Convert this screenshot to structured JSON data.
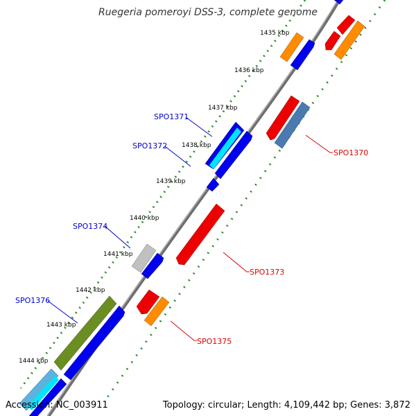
{
  "title": "Ruegeria pomeroyi DSS-3, complete genome",
  "footer": {
    "accession_prefix": "Accession: ",
    "accession": "NC_003911",
    "topology_text": "Topology: circular; Length: 4,109,442 bp; Genes: 3,872"
  },
  "colors": {
    "backbone": "#8c8c8c",
    "tick_minor": "#2e8b2e",
    "label_forward": "#0000cc",
    "label_reverse": "#dd0000",
    "blue": "#0000ee",
    "red": "#ee0000",
    "orange": "#ff8c00",
    "steelblue": "#4a7ab0",
    "cyan": "#00e5ff",
    "gray": "#c0c0c0",
    "olive": "#6b8e23",
    "lightblue": "#5ab4e0"
  },
  "ticks": [
    "1435 kbp",
    "1436 kbp",
    "1437 kbp",
    "1438 kbp",
    "1439 kbp",
    "1440 kbp",
    "1441 kbp",
    "1442 kbp",
    "1443 kbp",
    "1444 kbp"
  ],
  "gene_labels": {
    "forward": [
      "SPO1371",
      "SPO1372",
      "SPO1374",
      "SPO1376"
    ],
    "reverse": [
      "SPO1370",
      "SPO1373",
      "SPO1375"
    ]
  }
}
